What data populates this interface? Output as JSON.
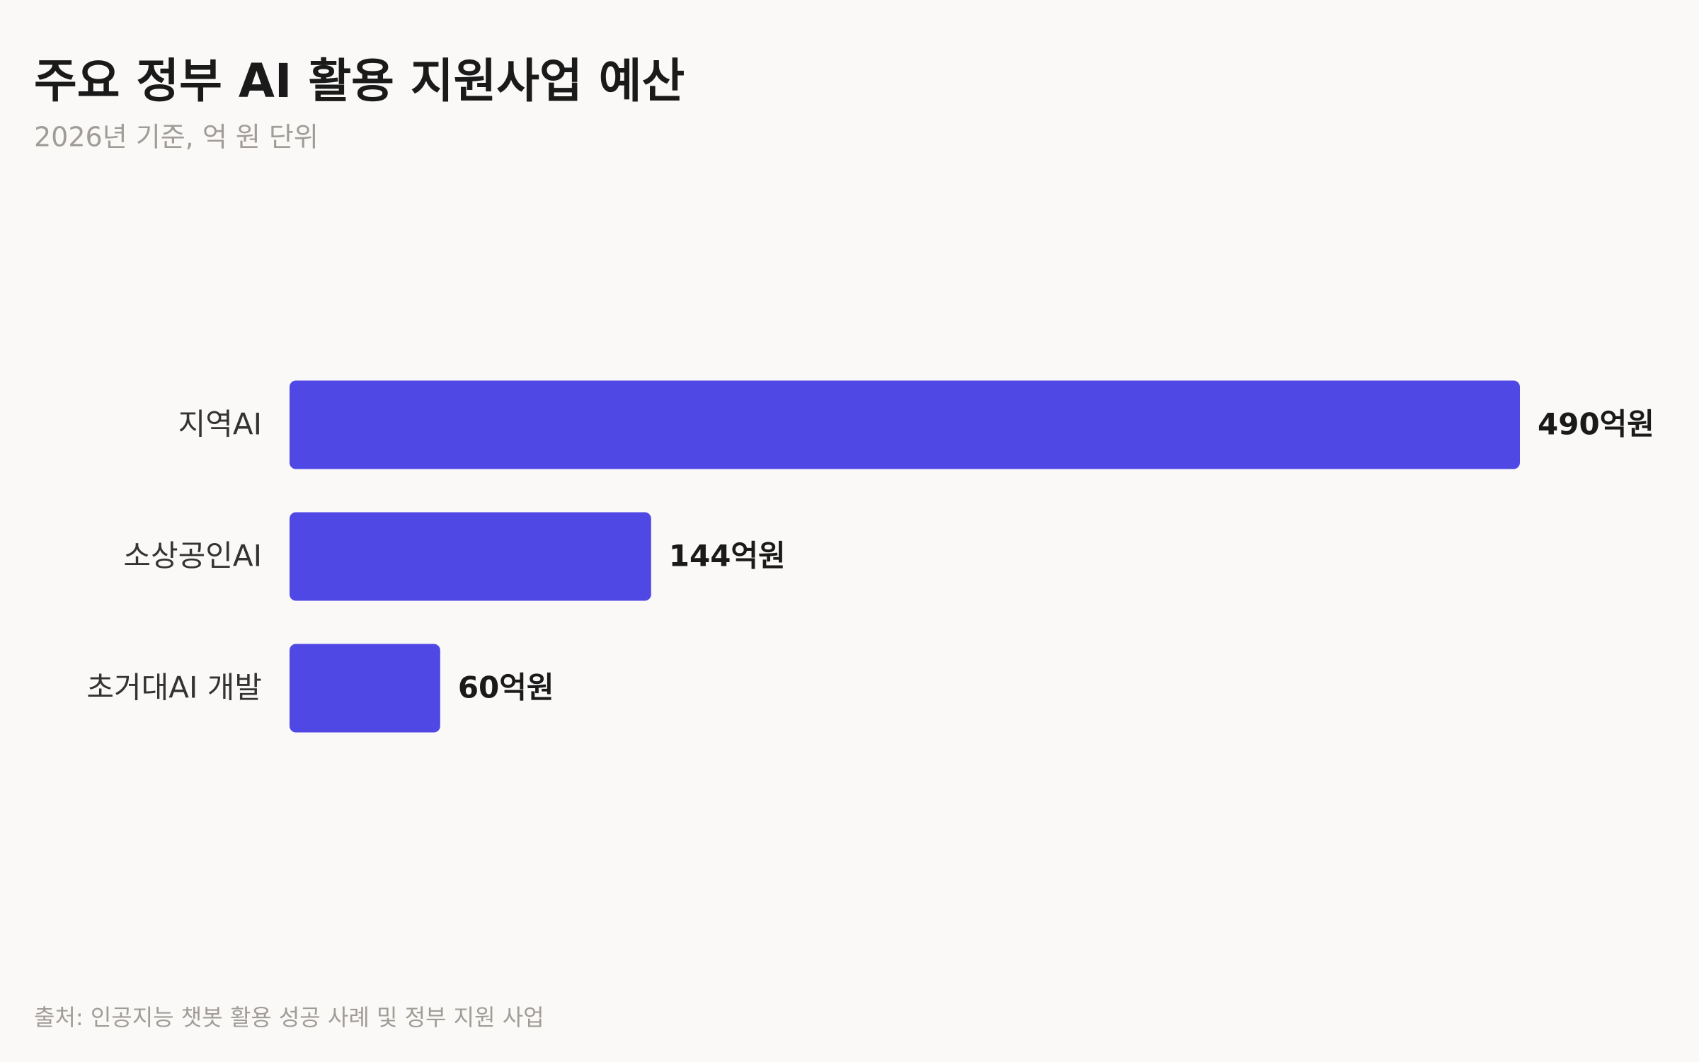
{
  "chart_data": {
    "type": "bar",
    "orientation": "horizontal",
    "title": "주요 정부 AI 활용 지원사업 예산",
    "subtitle": "2026년 기준, 억 원 단위",
    "categories": [
      "지역AI",
      "소상공인AI",
      "초거대AI 개발"
    ],
    "values": [
      490,
      144,
      60
    ],
    "value_labels": [
      "490억원",
      "144억원",
      "60억원"
    ],
    "color": "#5048e5",
    "source": "출처: 인공지능 챗봇 활용 성공 사례 및 정부 지원 사업"
  }
}
